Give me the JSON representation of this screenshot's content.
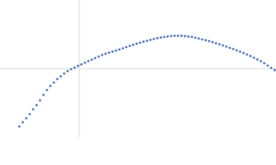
{
  "chart_data": {
    "type": "scatter",
    "color": "#3a66b0",
    "xlim": [
      -115,
      285
    ],
    "ylim": [
      -100,
      100
    ],
    "x": [
      -87,
      -82,
      -77,
      -72,
      -67,
      -62,
      -57,
      -52,
      -47,
      -42,
      -37,
      -32,
      -27,
      -22,
      -17,
      -12,
      -7,
      -2,
      3,
      8,
      13,
      18,
      23,
      28,
      33,
      38,
      43,
      48,
      53,
      58,
      63,
      68,
      73,
      78,
      83,
      88,
      93,
      98,
      103,
      108,
      113,
      118,
      123,
      128,
      133,
      138,
      143,
      148,
      153,
      158,
      163,
      168,
      173,
      178,
      183,
      188,
      193,
      198,
      203,
      208,
      213,
      218,
      223,
      228,
      233,
      238,
      243,
      248,
      253,
      258,
      263,
      268,
      273,
      278,
      283
    ],
    "values": [
      -84,
      -78,
      -72,
      -66,
      -59,
      -53,
      -46,
      -38,
      -31,
      -25,
      -20,
      -15,
      -11,
      -7,
      -3.5,
      -0.6,
      1.7,
      4.1,
      6.4,
      8.7,
      11.1,
      13.3,
      15.6,
      17.8,
      20.1,
      21.9,
      23.4,
      24.9,
      26.4,
      28,
      29.8,
      31.5,
      33.3,
      34.9,
      36.4,
      37.9,
      39.4,
      40.7,
      42,
      43.2,
      44.5,
      45.4,
      46.2,
      46.9,
      47.7,
      48,
      48,
      48,
      47.6,
      46.9,
      46.3,
      45.2,
      44,
      42.7,
      41.5,
      40.1,
      38.6,
      37.1,
      35.6,
      34,
      32.2,
      30.4,
      28.7,
      26.8,
      24.8,
      22.8,
      20.8,
      18.5,
      16,
      13.5,
      11,
      8,
      4.7,
      1.3,
      -2
    ]
  }
}
